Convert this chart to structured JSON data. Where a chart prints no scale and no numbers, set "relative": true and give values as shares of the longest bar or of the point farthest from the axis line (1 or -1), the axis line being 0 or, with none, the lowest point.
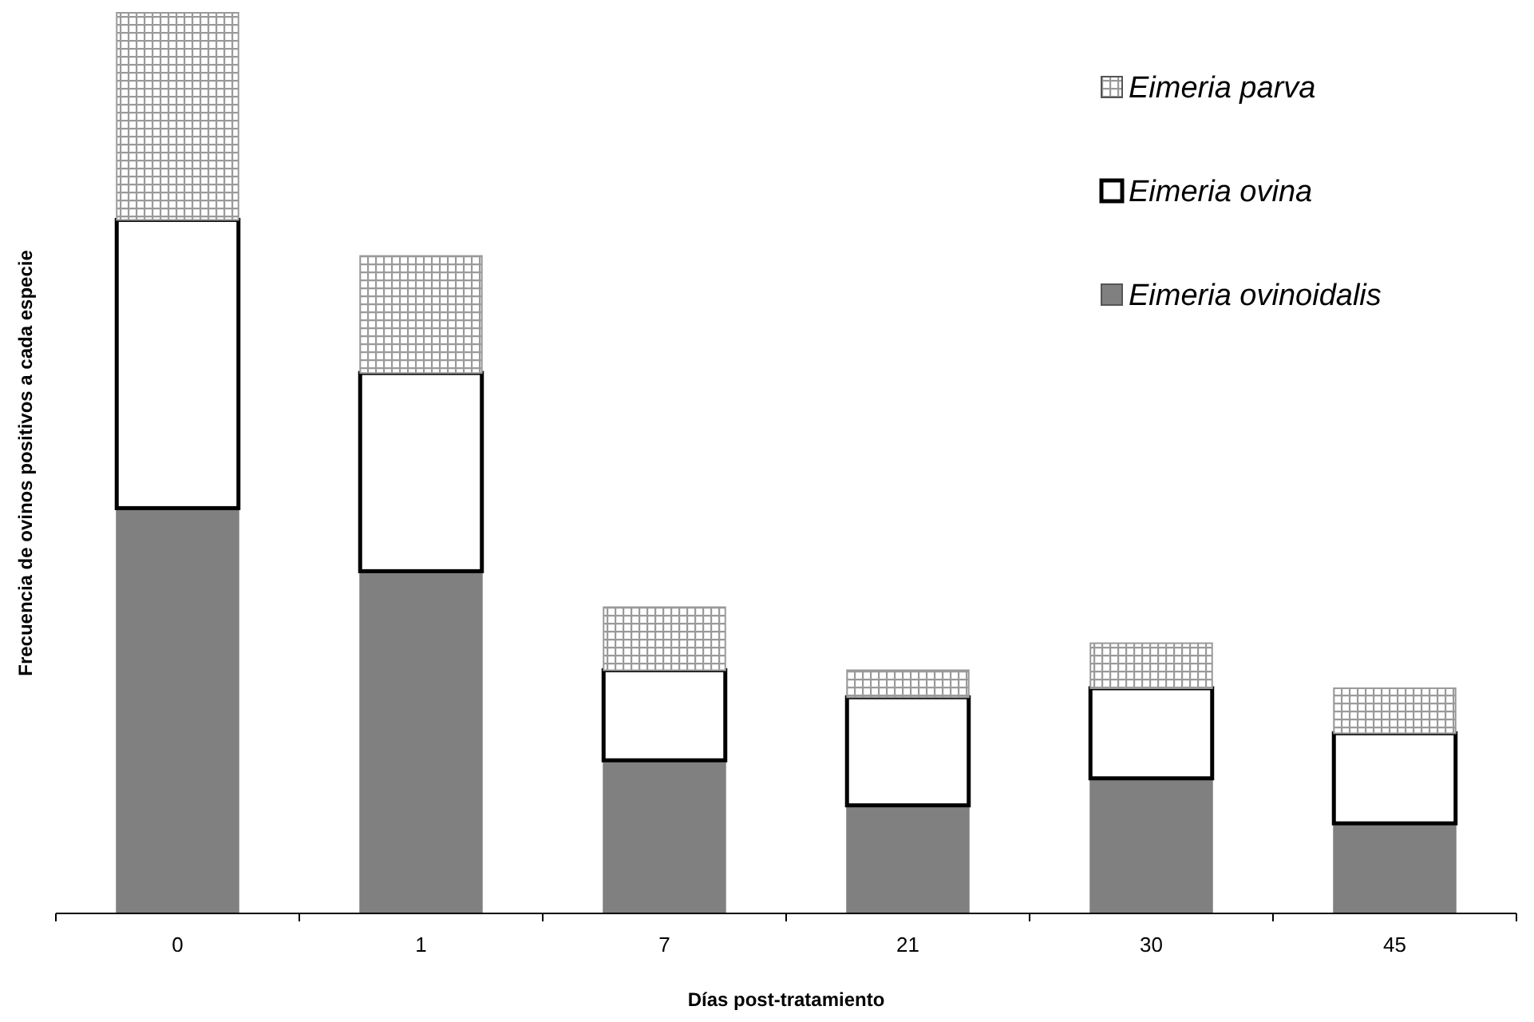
{
  "chart_data": {
    "type": "bar",
    "stacked": true,
    "relative": true,
    "xlabel": "Días post-tratamiento",
    "ylabel": "Frecuencia de ovinos positivos a cada especie",
    "categories": [
      "0",
      "1",
      "7",
      "21",
      "30",
      "45"
    ],
    "legend": "top right",
    "series": [
      {
        "name": "Eimeria ovinoidalis",
        "color": "#808080",
        "values": [
          0.45,
          0.38,
          0.17,
          0.12,
          0.15,
          0.1
        ]
      },
      {
        "name": "Eimeria ovina",
        "color": "#ffffff",
        "values": [
          0.32,
          0.22,
          0.1,
          0.12,
          0.1,
          0.1
        ]
      },
      {
        "name": "Eimeria parva",
        "color": "#9a9a9a",
        "values": [
          0.23,
          0.13,
          0.07,
          0.03,
          0.05,
          0.05
        ]
      }
    ]
  }
}
